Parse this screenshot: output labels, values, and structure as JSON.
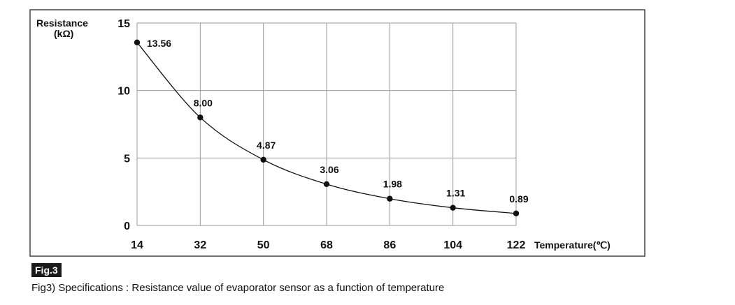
{
  "chart_data": {
    "type": "line",
    "x": [
      14,
      32,
      50,
      68,
      86,
      104,
      122
    ],
    "series": [
      {
        "values": [
          13.56,
          8.0,
          4.87,
          3.06,
          1.98,
          1.31,
          0.89
        ]
      }
    ],
    "data_labels": [
      "13.56",
      "8.00",
      "4.87",
      "3.06",
      "1.98",
      "1.31",
      "0.89"
    ],
    "x_ticks": [
      "14",
      "32",
      "50",
      "68",
      "86",
      "104",
      "122"
    ],
    "y_ticks": [
      0,
      5,
      10,
      15
    ],
    "xlim": [
      14,
      122
    ],
    "ylim": [
      0,
      15
    ],
    "ylabel_line1": "Resistance",
    "ylabel_line2": "(kΩ)",
    "xlabel": "Temperature(℃)",
    "grid": true,
    "colors": {
      "line": "#111111",
      "grid": "#9a9a9a",
      "frame": "#444444"
    }
  },
  "figure": {
    "tag": "Fig.3",
    "caption": "Fig3) Specifications : Resistance value of evaporator sensor as a function of temperature"
  }
}
